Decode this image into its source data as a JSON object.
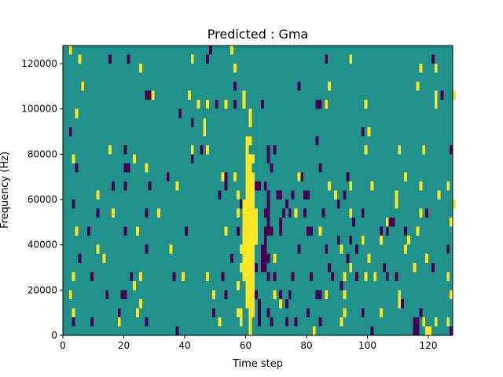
{
  "chart_data": {
    "type": "heatmap",
    "title": "Predicted : Gma",
    "xlabel": "Time step",
    "ylabel": "Frequency (Hz)",
    "xlim": [
      0,
      128
    ],
    "ylim": [
      0,
      128000
    ],
    "x_ticks": [
      {
        "value": 0,
        "label": "0"
      },
      {
        "value": 20,
        "label": "20"
      },
      {
        "value": 40,
        "label": "40"
      },
      {
        "value": 60,
        "label": "60"
      },
      {
        "value": 80,
        "label": "80"
      },
      {
        "value": 100,
        "label": "100"
      },
      {
        "value": 120,
        "label": "120"
      }
    ],
    "y_ticks": [
      {
        "value": 0,
        "label": "0"
      },
      {
        "value": 20000,
        "label": "20000"
      },
      {
        "value": 40000,
        "label": "40000"
      },
      {
        "value": 60000,
        "label": "60000"
      },
      {
        "value": 80000,
        "label": "80000"
      },
      {
        "value": 100000,
        "label": "100000"
      },
      {
        "value": 120000,
        "label": "120000"
      }
    ],
    "grid": false,
    "levels": [
      -1,
      0,
      1
    ],
    "colors": {
      "-1": "#440154",
      "0": "#21918c",
      "1": "#fde725"
    },
    "background_value": 0,
    "cell_height": 4000,
    "cells": [
      [
        2,
        124,
        1
      ],
      [
        5,
        120,
        1
      ],
      [
        15,
        120,
        -1
      ],
      [
        21,
        120,
        -1
      ],
      [
        25,
        116,
        1
      ],
      [
        42,
        120,
        1
      ],
      [
        47,
        120,
        -1
      ],
      [
        48,
        124,
        -1
      ],
      [
        55,
        124,
        1
      ],
      [
        56,
        116,
        1
      ],
      [
        86,
        120,
        -1
      ],
      [
        94,
        120,
        1
      ],
      [
        117,
        116,
        1
      ],
      [
        121,
        120,
        -1
      ],
      [
        122,
        116,
        1
      ],
      [
        6,
        108,
        1
      ],
      [
        27,
        104,
        -1
      ],
      [
        28,
        104,
        -1
      ],
      [
        29,
        104,
        1
      ],
      [
        41,
        104,
        1
      ],
      [
        56,
        108,
        -1
      ],
      [
        59,
        104,
        1
      ],
      [
        77,
        108,
        -1
      ],
      [
        87,
        108,
        1
      ],
      [
        116,
        108,
        1
      ],
      [
        122,
        104,
        1
      ],
      [
        124,
        104,
        -1
      ],
      [
        128,
        104,
        1
      ],
      [
        4,
        96,
        1
      ],
      [
        38,
        96,
        -1
      ],
      [
        42,
        92,
        -1
      ],
      [
        44,
        100,
        1
      ],
      [
        46,
        92,
        1
      ],
      [
        46,
        88,
        1
      ],
      [
        47,
        100,
        1
      ],
      [
        50,
        100,
        -1
      ],
      [
        53,
        100,
        1
      ],
      [
        56,
        100,
        -1
      ],
      [
        59,
        100,
        1
      ],
      [
        65,
        100,
        -1
      ],
      [
        83,
        100,
        -1
      ],
      [
        84,
        100,
        -1
      ],
      [
        86,
        100,
        1
      ],
      [
        99,
        100,
        1
      ],
      [
        98,
        88,
        -1
      ],
      [
        100,
        88,
        1
      ],
      [
        122,
        100,
        1
      ],
      [
        2,
        88,
        -1
      ],
      [
        15,
        80,
        1
      ],
      [
        20,
        80,
        -1
      ],
      [
        42,
        80,
        1
      ],
      [
        42,
        76,
        -1
      ],
      [
        45,
        80,
        -1
      ],
      [
        47,
        80,
        1
      ],
      [
        61,
        84,
        1
      ],
      [
        67,
        80,
        -1
      ],
      [
        69,
        80,
        -1
      ],
      [
        83,
        84,
        -1
      ],
      [
        99,
        80,
        1
      ],
      [
        110,
        80,
        1
      ],
      [
        118,
        80,
        1
      ],
      [
        127,
        80,
        -1
      ],
      [
        3,
        76,
        1
      ],
      [
        4,
        72,
        -1
      ],
      [
        20,
        72,
        -1
      ],
      [
        21,
        72,
        -1
      ],
      [
        23,
        76,
        1
      ],
      [
        27,
        72,
        1
      ],
      [
        34,
        68,
        -1
      ],
      [
        52,
        68,
        1
      ],
      [
        53,
        68,
        -1
      ],
      [
        56,
        68,
        1
      ],
      [
        60,
        76,
        1
      ],
      [
        62,
        76,
        1
      ],
      [
        67,
        76,
        -1
      ],
      [
        68,
        72,
        -1
      ],
      [
        77,
        68,
        1
      ],
      [
        78,
        68,
        -1
      ],
      [
        84,
        72,
        -1
      ],
      [
        93,
        68,
        -1
      ],
      [
        112,
        68,
        1
      ],
      [
        117,
        64,
        1
      ],
      [
        11,
        60,
        1
      ],
      [
        16,
        64,
        -1
      ],
      [
        20,
        64,
        -1
      ],
      [
        28,
        64,
        -1
      ],
      [
        37,
        64,
        1
      ],
      [
        51,
        60,
        -1
      ],
      [
        53,
        64,
        -1
      ],
      [
        57,
        60,
        1
      ],
      [
        58,
        56,
        -1
      ],
      [
        63,
        64,
        -1
      ],
      [
        64,
        64,
        -1
      ],
      [
        66,
        64,
        -1
      ],
      [
        70,
        60,
        -1
      ],
      [
        71,
        60,
        -1
      ],
      [
        73,
        56,
        -1
      ],
      [
        75,
        60,
        -1
      ],
      [
        79,
        60,
        -1
      ],
      [
        80,
        60,
        -1
      ],
      [
        87,
        64,
        1
      ],
      [
        89,
        60,
        1
      ],
      [
        92,
        60,
        -1
      ],
      [
        94,
        64,
        1
      ],
      [
        101,
        64,
        1
      ],
      [
        109,
        60,
        1
      ],
      [
        123,
        60,
        1
      ],
      [
        126,
        64,
        1
      ],
      [
        3,
        56,
        -1
      ],
      [
        11,
        52,
        -1
      ],
      [
        16,
        52,
        1
      ],
      [
        27,
        52,
        -1
      ],
      [
        31,
        52,
        1
      ],
      [
        57,
        52,
        1
      ],
      [
        60,
        52,
        1
      ],
      [
        66,
        52,
        -1
      ],
      [
        71,
        48,
        -1
      ],
      [
        72,
        52,
        -1
      ],
      [
        74,
        52,
        -1
      ],
      [
        76,
        52,
        1
      ],
      [
        79,
        52,
        -1
      ],
      [
        85,
        52,
        -1
      ],
      [
        90,
        56,
        -1
      ],
      [
        94,
        52,
        1
      ],
      [
        95,
        48,
        -1
      ],
      [
        98,
        52,
        -1
      ],
      [
        108,
        48,
        -1
      ],
      [
        106,
        48,
        1
      ],
      [
        109,
        56,
        1
      ],
      [
        117,
        52,
        1
      ],
      [
        119,
        52,
        -1
      ],
      [
        128,
        56,
        1
      ],
      [
        4,
        44,
        1
      ],
      [
        8,
        44,
        -1
      ],
      [
        20,
        44,
        -1
      ],
      [
        24,
        44,
        1
      ],
      [
        40,
        44,
        -1
      ],
      [
        53,
        44,
        1
      ],
      [
        57,
        44,
        -1
      ],
      [
        62,
        44,
        1
      ],
      [
        67,
        44,
        -1
      ],
      [
        68,
        44,
        -1
      ],
      [
        71,
        44,
        -1
      ],
      [
        80,
        44,
        -1
      ],
      [
        81,
        44,
        -1
      ],
      [
        84,
        44,
        1
      ],
      [
        90,
        40,
        -1
      ],
      [
        94,
        40,
        -1
      ],
      [
        98,
        40,
        1
      ],
      [
        104,
        40,
        1
      ],
      [
        104,
        44,
        -1
      ],
      [
        106,
        44,
        -1
      ],
      [
        107,
        48,
        -1
      ],
      [
        112,
        44,
        -1
      ],
      [
        113,
        40,
        1
      ],
      [
        116,
        44,
        1
      ],
      [
        127,
        48,
        1
      ],
      [
        5,
        32,
        -1
      ],
      [
        11,
        36,
        1
      ],
      [
        13,
        32,
        1
      ],
      [
        27,
        36,
        -1
      ],
      [
        35,
        36,
        1
      ],
      [
        55,
        32,
        -1
      ],
      [
        58,
        36,
        1
      ],
      [
        67,
        32,
        -1
      ],
      [
        69,
        32,
        1
      ],
      [
        77,
        36,
        -1
      ],
      [
        86,
        36,
        -1
      ],
      [
        91,
        36,
        1
      ],
      [
        93,
        32,
        -1
      ],
      [
        94,
        28,
        1
      ],
      [
        96,
        36,
        -1
      ],
      [
        100,
        32,
        1
      ],
      [
        105,
        28,
        -1
      ],
      [
        112,
        36,
        1
      ],
      [
        119,
        32,
        1
      ],
      [
        126,
        36,
        -1
      ],
      [
        3,
        24,
        1
      ],
      [
        9,
        24,
        -1
      ],
      [
        22,
        24,
        -1
      ],
      [
        23,
        20,
        1
      ],
      [
        25,
        24,
        1
      ],
      [
        36,
        24,
        -1
      ],
      [
        39,
        24,
        1
      ],
      [
        47,
        24,
        1
      ],
      [
        52,
        24,
        -1
      ],
      [
        57,
        20,
        1
      ],
      [
        58,
        28,
        1
      ],
      [
        63,
        28,
        -1
      ],
      [
        67,
        24,
        -1
      ],
      [
        69,
        24,
        -1
      ],
      [
        75,
        24,
        -1
      ],
      [
        81,
        24,
        -1
      ],
      [
        87,
        28,
        -1
      ],
      [
        88,
        24,
        -1
      ],
      [
        91,
        20,
        -1
      ],
      [
        92,
        24,
        1
      ],
      [
        96,
        24,
        -1
      ],
      [
        99,
        24,
        1
      ],
      [
        102,
        24,
        1
      ],
      [
        106,
        24,
        -1
      ],
      [
        109,
        24,
        -1
      ],
      [
        115,
        28,
        1
      ],
      [
        121,
        28,
        -1
      ],
      [
        126,
        24,
        1
      ],
      [
        2,
        16,
        1
      ],
      [
        14,
        16,
        -1
      ],
      [
        19,
        16,
        -1
      ],
      [
        20,
        16,
        -1
      ],
      [
        25,
        12,
        1
      ],
      [
        49,
        16,
        1
      ],
      [
        53,
        16,
        -1
      ],
      [
        63,
        16,
        -1
      ],
      [
        69,
        16,
        1
      ],
      [
        71,
        16,
        -1
      ],
      [
        73,
        12,
        -1
      ],
      [
        74,
        16,
        -1
      ],
      [
        83,
        16,
        -1
      ],
      [
        84,
        16,
        -1
      ],
      [
        86,
        16,
        1
      ],
      [
        92,
        16,
        1
      ],
      [
        110,
        16,
        1
      ],
      [
        111,
        12,
        -1
      ],
      [
        127,
        16,
        1
      ],
      [
        3,
        8,
        1
      ],
      [
        3,
        4,
        -1
      ],
      [
        9,
        4,
        -1
      ],
      [
        18,
        4,
        1
      ],
      [
        18,
        8,
        -1
      ],
      [
        24,
        8,
        1
      ],
      [
        27,
        4,
        -1
      ],
      [
        37,
        0,
        -1
      ],
      [
        49,
        8,
        -1
      ],
      [
        51,
        4,
        1
      ],
      [
        57,
        8,
        1
      ],
      [
        67,
        8,
        -1
      ],
      [
        68,
        4,
        -1
      ],
      [
        71,
        12,
        1
      ],
      [
        73,
        4,
        -1
      ],
      [
        76,
        4,
        -1
      ],
      [
        80,
        8,
        -1
      ],
      [
        82,
        0,
        1
      ],
      [
        84,
        4,
        -1
      ],
      [
        91,
        4,
        1
      ],
      [
        92,
        8,
        1
      ],
      [
        98,
        8,
        -1
      ],
      [
        101,
        0,
        -1
      ],
      [
        104,
        8,
        1
      ],
      [
        110,
        12,
        1
      ],
      [
        115,
        0,
        -1
      ],
      [
        116,
        0,
        -1
      ],
      [
        115,
        4,
        -1
      ],
      [
        116,
        4,
        -1
      ],
      [
        117,
        8,
        -1
      ],
      [
        118,
        4,
        1
      ],
      [
        119,
        0,
        1
      ],
      [
        120,
        0,
        1
      ],
      [
        122,
        4,
        1
      ],
      [
        126,
        4,
        1
      ],
      [
        127,
        0,
        -1
      ]
    ],
    "columns": [
      {
        "x": 60,
        "from": 12000,
        "to": 88000,
        "value": 1
      },
      {
        "x": 61,
        "from": 0,
        "to": 80000,
        "value": 1
      },
      {
        "x": 62,
        "from": 8000,
        "to": 72000,
        "value": 1
      },
      {
        "x": 61,
        "from": 92000,
        "to": 100000,
        "value": 1
      },
      {
        "x": 59,
        "from": 24000,
        "to": 60000,
        "value": 1
      },
      {
        "x": 58,
        "from": 4000,
        "to": 12000,
        "value": 1
      },
      {
        "x": 63,
        "from": 40000,
        "to": 56000,
        "value": 1
      },
      {
        "x": 66,
        "from": 28000,
        "to": 48000,
        "value": -1
      },
      {
        "x": 67,
        "from": 48000,
        "to": 64000,
        "value": -1
      },
      {
        "x": 64,
        "from": 4000,
        "to": 16000,
        "value": -1
      },
      {
        "x": 65,
        "from": 28000,
        "to": 40000,
        "value": -1
      }
    ]
  }
}
